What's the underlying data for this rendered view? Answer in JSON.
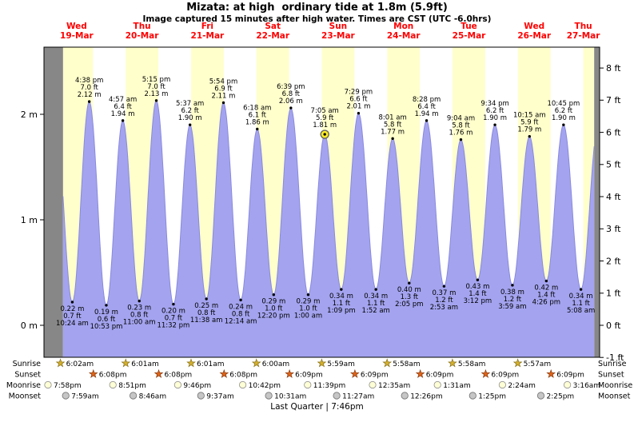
{
  "title": "Mizata: at high  ordinary tide at 1.8m (5.9ft)",
  "subtitle": "Image captured 15 minutes after high water. Times are CST (UTC -6.0hrs)",
  "colors": {
    "day_label": "#ff0000",
    "band_day": "#ffffcc",
    "band_night": "#ffffff",
    "band_outside": "#878787",
    "tide_fill": "#a3a3ef",
    "tide_edge": "#8a8ade",
    "sun_marker_fill": "#ffee22",
    "sun_marker_ring": "#666666",
    "sunrise_star": "#d2ae2e",
    "sunset_star": "#dd6318",
    "moonrise_disc": "#ffffd6",
    "moonset_disc": "#c6c6c6",
    "text": "#000000"
  },
  "chart_data": {
    "type": "area",
    "title": "Mizata: at high  ordinary tide at 1.8m (5.9ft)",
    "x_axis": "time from Wed 19-Mar 00:00 to Thu 27-Mar 12:00, in hours",
    "x_hours_range": [
      0,
      204
    ],
    "ylim_m": [
      -0.303,
      2.636
    ],
    "data_window_hours": [
      7,
      202
    ],
    "daylight_bands_hours": [
      [
        7,
        18
      ],
      [
        30,
        42
      ],
      [
        54,
        66
      ],
      [
        78,
        90
      ],
      [
        102,
        114
      ],
      [
        126,
        138
      ],
      [
        150,
        162
      ],
      [
        174,
        186
      ],
      [
        198,
        202
      ]
    ],
    "offrange_bands_hours": [
      [
        0,
        7
      ],
      [
        202,
        204
      ]
    ],
    "context_before": {
      "t": 4.23,
      "h": 1.95
    },
    "context_after": {
      "t": 203.5,
      "h": 1.9
    },
    "days": [
      {
        "name": "Wed",
        "date": "19-Mar"
      },
      {
        "name": "Thu",
        "date": "20-Mar"
      },
      {
        "name": "Fri",
        "date": "21-Mar"
      },
      {
        "name": "Sat",
        "date": "22-Mar"
      },
      {
        "name": "Sun",
        "date": "23-Mar"
      },
      {
        "name": "Mon",
        "date": "24-Mar"
      },
      {
        "name": "Tue",
        "date": "25-Mar"
      },
      {
        "name": "Wed",
        "date": "26-Mar"
      },
      {
        "name": "Thu",
        "date": "27-Mar"
      }
    ],
    "y_axis_left": {
      "unit": "m",
      "labels": [
        "2 m",
        "1 m",
        "0 m"
      ],
      "values": [
        2,
        1,
        0
      ]
    },
    "y_axis_right": {
      "unit": "ft",
      "labels": [
        "8 ft",
        "7 ft",
        "6 ft",
        "5 ft",
        "4 ft",
        "3 ft",
        "2 ft",
        "1 ft",
        "0 ft",
        "-1 ft"
      ],
      "values": [
        8,
        7,
        6,
        5,
        4,
        3,
        2,
        1,
        0,
        -1
      ]
    },
    "tide_events": [
      {
        "kind": "low",
        "t": 10.4,
        "time": "10:24 am",
        "ft": "0.7 ft",
        "m": "0.22 m"
      },
      {
        "kind": "high",
        "t": 16.633,
        "time": "4:38 pm",
        "ft": "7.0 ft",
        "m": "2.12 m"
      },
      {
        "kind": "low",
        "t": 22.883,
        "time": "10:53 pm",
        "ft": "0.6 ft",
        "m": "0.19 m"
      },
      {
        "kind": "high",
        "t": 28.95,
        "time": "4:57 am",
        "ft": "6.4 ft",
        "m": "1.94 m"
      },
      {
        "kind": "low",
        "t": 35.0,
        "time": "11:00 am",
        "ft": "0.8 ft",
        "m": "0.23 m"
      },
      {
        "kind": "high",
        "t": 41.25,
        "time": "5:15 pm",
        "ft": "7.0 ft",
        "m": "2.13 m"
      },
      {
        "kind": "low",
        "t": 47.533,
        "time": "11:32 pm",
        "ft": "0.7 ft",
        "m": "0.20 m"
      },
      {
        "kind": "high",
        "t": 53.617,
        "time": "5:37 am",
        "ft": "6.2 ft",
        "m": "1.90 m"
      },
      {
        "kind": "low",
        "t": 59.633,
        "time": "11:38 am",
        "ft": "0.8 ft",
        "m": "0.25 m"
      },
      {
        "kind": "high",
        "t": 65.9,
        "time": "5:54 pm",
        "ft": "6.9 ft",
        "m": "2.11 m"
      },
      {
        "kind": "low",
        "t": 72.233,
        "time": "12:14 am",
        "ft": "0.8 ft",
        "m": "0.24 m"
      },
      {
        "kind": "high",
        "t": 78.3,
        "time": "6:18 am",
        "ft": "6.1 ft",
        "m": "1.86 m"
      },
      {
        "kind": "low",
        "t": 84.333,
        "time": "12:20 pm",
        "ft": "1.0 ft",
        "m": "0.29 m"
      },
      {
        "kind": "high",
        "t": 90.65,
        "time": "6:39 pm",
        "ft": "6.8 ft",
        "m": "2.06 m"
      },
      {
        "kind": "low",
        "t": 97.0,
        "time": "1:00 am",
        "ft": "1.0 ft",
        "m": "0.29 m"
      },
      {
        "kind": "high",
        "t": 103.083,
        "time": "7:05 am",
        "ft": "5.9 ft",
        "m": "1.81 m",
        "sun_marker": true
      },
      {
        "kind": "low",
        "t": 109.15,
        "time": "1:09 pm",
        "ft": "1.1 ft",
        "m": "0.34 m"
      },
      {
        "kind": "high",
        "t": 115.483,
        "time": "7:29 pm",
        "ft": "6.6 ft",
        "m": "2.01 m"
      },
      {
        "kind": "low",
        "t": 121.867,
        "time": "1:52 am",
        "ft": "1.1 ft",
        "m": "0.34 m"
      },
      {
        "kind": "high",
        "t": 128.017,
        "time": "8:01 am",
        "ft": "5.8 ft",
        "m": "1.77 m"
      },
      {
        "kind": "low",
        "t": 134.083,
        "time": "2:05 pm",
        "ft": "1.3 ft",
        "m": "0.40 m"
      },
      {
        "kind": "high",
        "t": 140.467,
        "time": "8:28 pm",
        "ft": "6.4 ft",
        "m": "1.94 m"
      },
      {
        "kind": "low",
        "t": 146.883,
        "time": "2:53 am",
        "ft": "1.2 ft",
        "m": "0.37 m"
      },
      {
        "kind": "high",
        "t": 153.067,
        "time": "9:04 am",
        "ft": "5.8 ft",
        "m": "1.76 m"
      },
      {
        "kind": "low",
        "t": 159.2,
        "time": "3:12 pm",
        "ft": "1.4 ft",
        "m": "0.43 m"
      },
      {
        "kind": "high",
        "t": 165.567,
        "time": "9:34 pm",
        "ft": "6.2 ft",
        "m": "1.90 m"
      },
      {
        "kind": "low",
        "t": 171.983,
        "time": "3:59 am",
        "ft": "1.2 ft",
        "m": "0.38 m"
      },
      {
        "kind": "high",
        "t": 178.25,
        "time": "10:15 am",
        "ft": "5.9 ft",
        "m": "1.79 m"
      },
      {
        "kind": "low",
        "t": 184.433,
        "time": "4:26 pm",
        "ft": "1.4 ft",
        "m": "0.42 m"
      },
      {
        "kind": "high",
        "t": 190.75,
        "time": "10:45 pm",
        "ft": "6.2 ft",
        "m": "1.90 m"
      },
      {
        "kind": "low",
        "t": 197.133,
        "time": "5:08 am",
        "ft": "1.1 ft",
        "m": "0.34 m"
      }
    ]
  },
  "astro": {
    "row_labels": [
      "Sunrise",
      "Sunset",
      "Moonrise",
      "Moonset"
    ],
    "sunrise": [
      "6:02am",
      "6:01am",
      "6:01am",
      "6:00am",
      "5:59am",
      "5:58am",
      "5:58am",
      "5:57am"
    ],
    "sunset": [
      "6:08pm",
      "6:08pm",
      "6:08pm",
      "6:09pm",
      "6:09pm",
      "6:09pm",
      "6:09pm",
      "6:09pm"
    ],
    "moonrise": [
      "7:58pm",
      "8:51pm",
      "9:46pm",
      "10:42pm",
      "11:39pm",
      "12:35am",
      "1:31am",
      "2:24am",
      "3:16am"
    ],
    "moonset": [
      "7:59am",
      "8:46am",
      "9:37am",
      "10:31am",
      "11:27am",
      "12:26pm",
      "1:25pm",
      "2:25pm"
    ],
    "moon_phase": "Last Quarter | 7:46pm"
  }
}
